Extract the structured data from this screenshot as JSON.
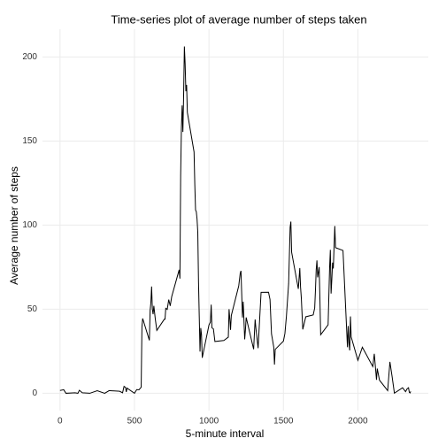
{
  "chart_data": {
    "type": "line",
    "title": "Time-series plot of average number of steps taken",
    "x_label": "5-minute interval",
    "y_label": "Average number of steps",
    "x": [
      0,
      25,
      40,
      100,
      120,
      130,
      150,
      200,
      250,
      300,
      330,
      400,
      420,
      430,
      440,
      445,
      450,
      500,
      515,
      530,
      545,
      550,
      555,
      600,
      605,
      610,
      615,
      620,
      625,
      630,
      640,
      650,
      700,
      705,
      710,
      720,
      730,
      740,
      750,
      800,
      805,
      810,
      815,
      820,
      825,
      830,
      835,
      840,
      845,
      850,
      855,
      900,
      905,
      910,
      915,
      920,
      925,
      930,
      935,
      940,
      945,
      950,
      955,
      1000,
      1010,
      1015,
      1020,
      1030,
      1040,
      1100,
      1130,
      1135,
      1140,
      1145,
      1150,
      1200,
      1210,
      1215,
      1225,
      1230,
      1240,
      1245,
      1250,
      1300,
      1310,
      1315,
      1330,
      1350,
      1400,
      1410,
      1420,
      1435,
      1440,
      1445,
      1500,
      1510,
      1520,
      1535,
      1545,
      1550,
      1555,
      1600,
      1610,
      1615,
      1620,
      1630,
      1650,
      1700,
      1710,
      1715,
      1720,
      1725,
      1730,
      1740,
      1745,
      1750,
      1800,
      1810,
      1815,
      1820,
      1825,
      1830,
      1835,
      1845,
      1850,
      1900,
      1930,
      1935,
      1940,
      1945,
      1950,
      1955,
      2000,
      2030,
      2100,
      2110,
      2125,
      2130,
      2145,
      2200,
      2215,
      2230,
      2245,
      2300,
      2320,
      2330,
      2340,
      2345,
      2350,
      2355
    ],
    "series": [
      {
        "name": "steps",
        "color": "#000000",
        "values": [
          1.7,
          2.1,
          0,
          0.3,
          0,
          1.8,
          0.3,
          0,
          1.5,
          0,
          1.6,
          1.2,
          0.3,
          4.1,
          3.5,
          0.8,
          3.1,
          0,
          2.2,
          2.1,
          3.6,
          39.5,
          44.5,
          31.5,
          49.3,
          53.8,
          63.5,
          50,
          47,
          52,
          44,
          37.4,
          44,
          44,
          50.5,
          49.9,
          55.7,
          52,
          57.5,
          73.4,
          68.2,
          129.4,
          157.5,
          171.2,
          155.4,
          177.3,
          206.2,
          195.9,
          179.6,
          183.4,
          167,
          143.5,
          124,
          109,
          108,
          103.7,
          95.9,
          66.2,
          45.2,
          24.8,
          38.8,
          34.9,
          21.1,
          40.6,
          42.4,
          52.7,
          38.9,
          38.3,
          30.8,
          31.4,
          33.4,
          50,
          44.3,
          37.7,
          46.2,
          63.9,
          71.4,
          72.8,
          45,
          54.5,
          32.1,
          37.6,
          45.1,
          26.2,
          43.9,
          38.9,
          26.8,
          60,
          60.1,
          55.8,
          35.3,
          27.5,
          17.1,
          26.1,
          31,
          35.5,
          45.7,
          65.3,
          98.7,
          102.1,
          83.9,
          62.1,
          74.5,
          63.2,
          56.9,
          38,
          45.5,
          46.6,
          50.7,
          61.2,
          73.4,
          79,
          68.9,
          75.1,
          56.5,
          34.8,
          40.7,
          74.7,
          85.3,
          59.3,
          67.8,
          77.7,
          74.2,
          99.5,
          86.6,
          84.9,
          27.4,
          40,
          30.2,
          25.5,
          45.7,
          33.5,
          19.6,
          27.4,
          15.9,
          23.5,
          8,
          14.7,
          7.8,
          1.6,
          18.7,
          9.8,
          0.1,
          3.3,
          0.96,
          2.6,
          3.3,
          0.6,
          0.2,
          1.1
        ]
      }
    ],
    "xlim": [
      -117.75,
      2472.75
    ],
    "ylim": [
      -10.3,
      216.5
    ],
    "xticks": [
      0,
      500,
      1000,
      1500,
      2000
    ],
    "yticks": [
      0,
      50,
      100,
      150,
      200
    ],
    "grid": true
  }
}
